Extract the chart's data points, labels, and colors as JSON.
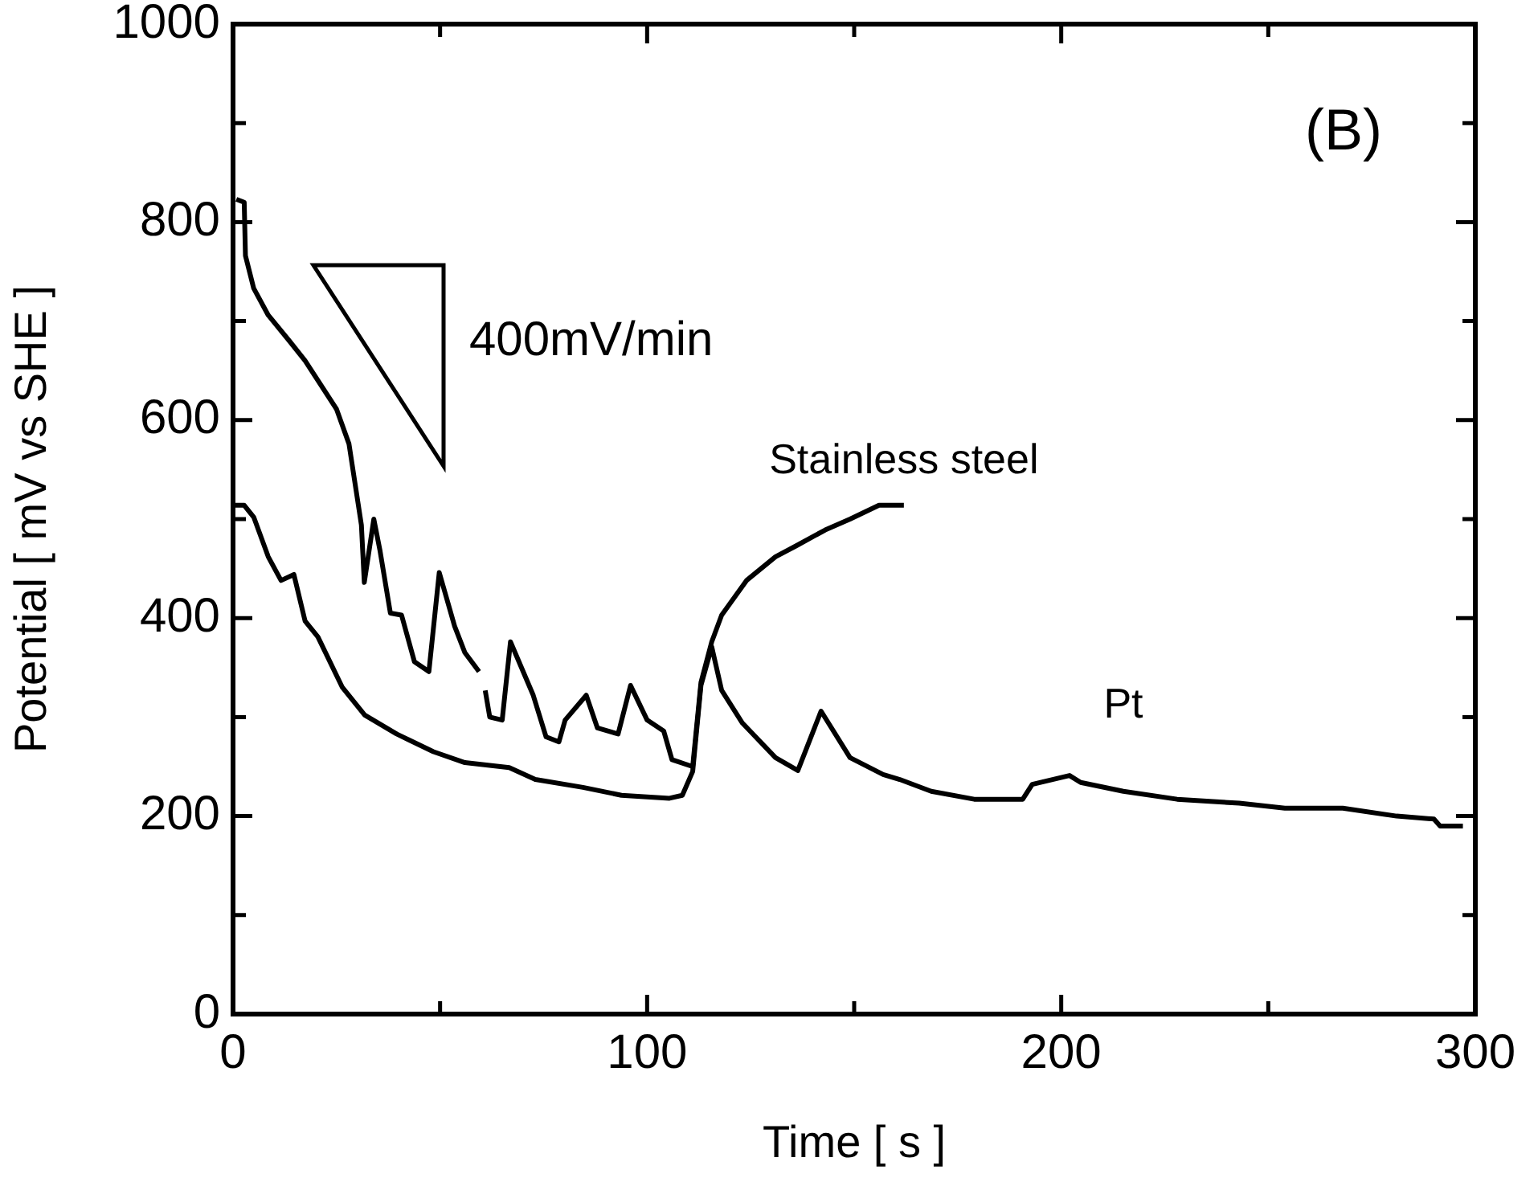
{
  "chart_data": {
    "type": "line",
    "xlabel": "Time [ s ]",
    "ylabel": "Potential [ mV vs SHE ]",
    "xlim": [
      0,
      300
    ],
    "ylim": [
      0,
      1000
    ],
    "xticks": [
      0,
      {
        "value": 50,
        "label": null
      },
      100,
      {
        "value": 150,
        "label": null
      },
      200,
      {
        "value": 250,
        "label": null
      },
      300
    ],
    "yticks": [
      0,
      {
        "value": 100,
        "label": null
      },
      200,
      {
        "value": 300,
        "label": null
      },
      400,
      {
        "value": 500,
        "label": null
      },
      600,
      {
        "value": 700,
        "label": null
      },
      800,
      {
        "value": 900,
        "label": null
      },
      1000
    ],
    "grid": false,
    "legend": false,
    "marker": "none",
    "line_style": "solid",
    "annotations": [
      "(B)",
      "400mV/min"
    ],
    "series": [
      {
        "name": "Stainless steel",
        "color": "#000000",
        "x": [
          0.8,
          2.7,
          3,
          5,
          8.5,
          13.6,
          17.4,
          25,
          28,
          31,
          31.7,
          34,
          35.5,
          38,
          40.7,
          43.8,
          47.3,
          49.8,
          53.5,
          56,
          59.4,
          60.2,
          60.9,
          62,
          65,
          67,
          72.5,
          75.6,
          78.7,
          80.2,
          85.3,
          88,
          93,
          96,
          100,
          104,
          106,
          111,
          113,
          115.6,
          118,
          124,
          131,
          136,
          143,
          149,
          156,
          162
        ],
        "values": [
          823,
          820,
          766,
          733,
          706,
          680,
          660,
          611,
          576,
          494,
          436,
          500,
          468,
          405,
          403,
          356,
          346,
          446,
          392,
          365,
          346,
          null,
          327,
          300,
          297,
          376,
          322,
          280,
          275,
          297,
          322,
          289,
          283,
          332,
          297,
          286,
          257,
          250,
          335,
          376,
          403,
          438,
          462,
          473,
          489,
          500,
          514,
          514
        ]
      },
      {
        "name": "Pt",
        "color": "#000000",
        "x": [
          0,
          2.7,
          5,
          8.5,
          11.6,
          14.7,
          17.4,
          20.5,
          26.4,
          31.8,
          39.5,
          48.4,
          56,
          66.7,
          73,
          84.5,
          93.8,
          105.4,
          108.5,
          111,
          113,
          115.6,
          118,
          123,
          131,
          136.4,
          142,
          149,
          157,
          161,
          168.6,
          179,
          190.7,
          193,
          202,
          204.7,
          215,
          228,
          243,
          254,
          268,
          281,
          290,
          291.5,
          297
        ],
        "values": [
          514,
          514,
          502,
          462,
          438,
          444,
          397,
          381,
          330,
          302,
          283,
          265,
          254,
          249,
          237,
          229,
          221,
          218,
          221,
          245,
          332,
          371,
          327,
          294,
          259,
          246,
          306,
          259,
          242,
          237,
          225,
          217,
          217,
          232,
          241,
          234,
          225,
          217,
          213,
          208,
          208,
          200,
          197,
          190,
          190
        ]
      }
    ]
  }
}
